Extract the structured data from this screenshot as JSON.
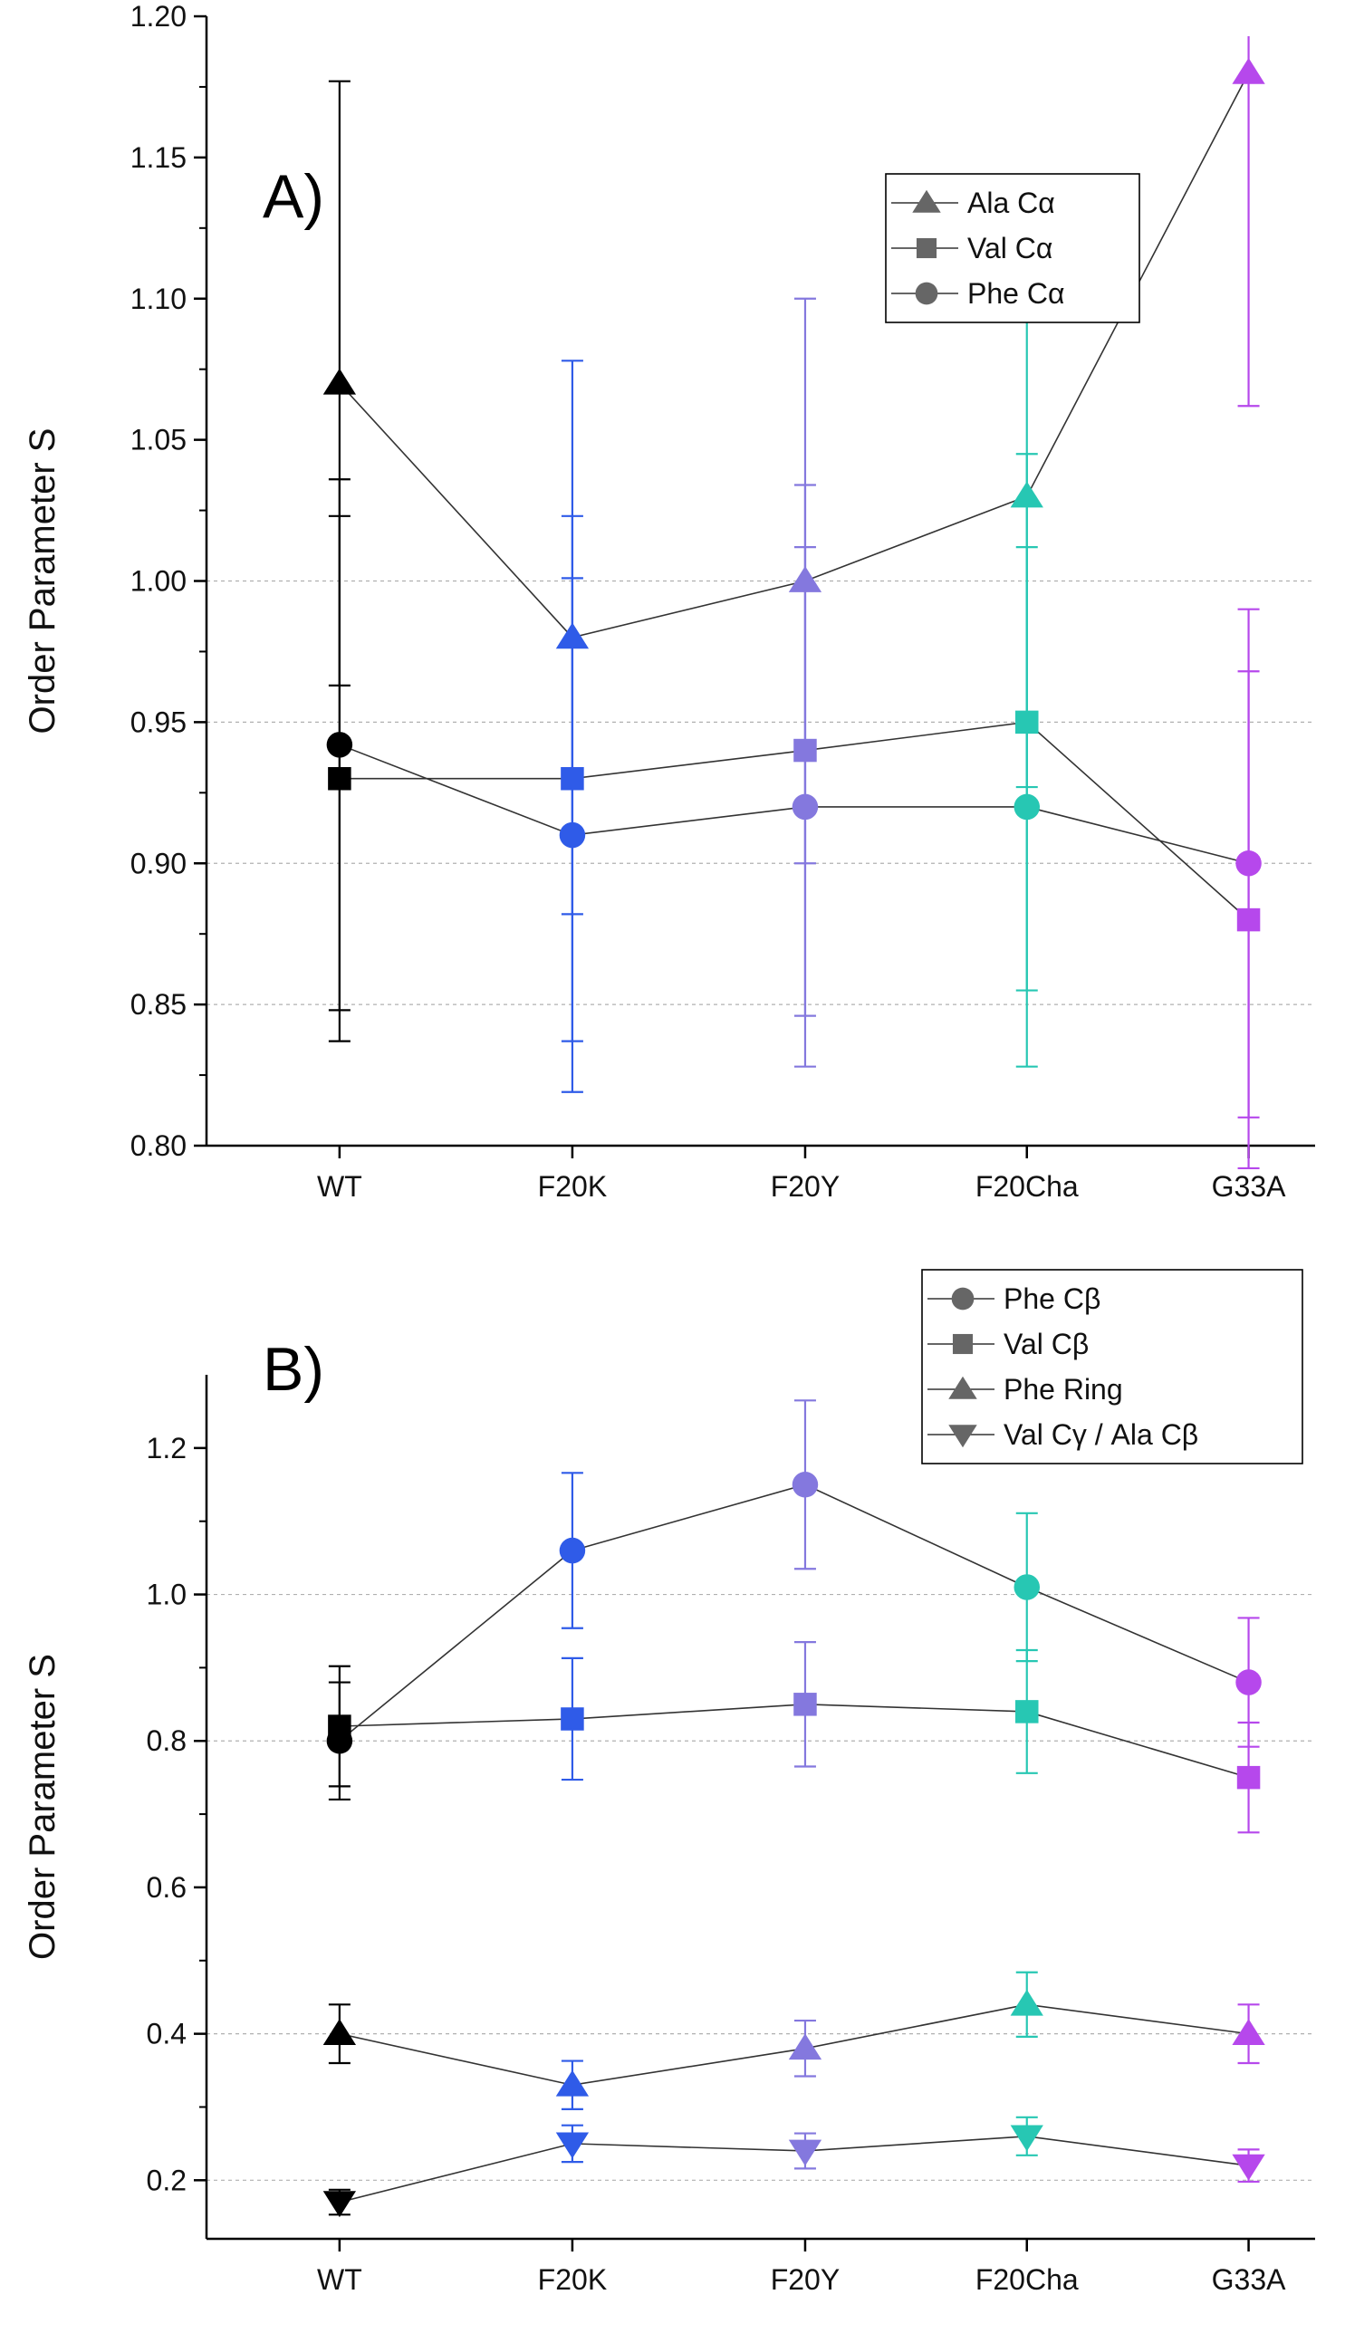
{
  "chart_data": [
    {
      "type": "line",
      "panel_label": "A)",
      "categories": [
        "WT",
        "F20K",
        "F20Y",
        "F20Cha",
        "G33A"
      ],
      "category_colors": [
        "#000000",
        "#2f5be8",
        "#8478de",
        "#27c7b3",
        "#b648ec"
      ],
      "ylabel": "Order Parameter S",
      "xlabel": "",
      "ylim": [
        0.8,
        1.2
      ],
      "yticks": [
        0.8,
        0.85,
        0.9,
        0.95,
        1.0,
        1.05,
        1.1,
        1.15,
        1.2
      ],
      "ytick_labels": [
        "0.80",
        "0.85",
        "0.90",
        "0.95",
        "1.00",
        "1.05",
        "1.10",
        "1.15",
        "1.20"
      ],
      "grid_lines": [
        0.85,
        0.9,
        0.95,
        1.0
      ],
      "legend_position": "top-right",
      "series": [
        {
          "name": "Ala Cα",
          "marker": "triangle-up",
          "values": [
            1.07,
            0.98,
            1.0,
            1.03,
            1.18
          ],
          "errors": [
            0.107,
            0.098,
            0.1,
            0.103,
            0.118
          ]
        },
        {
          "name": "Val  Cα",
          "marker": "square",
          "values": [
            0.93,
            0.93,
            0.94,
            0.95,
            0.88
          ],
          "errors": [
            0.093,
            0.093,
            0.094,
            0.095,
            0.088
          ]
        },
        {
          "name": "Phe Cα",
          "marker": "circle",
          "values": [
            0.942,
            0.91,
            0.92,
            0.92,
            0.9
          ],
          "errors": [
            0.094,
            0.091,
            0.092,
            0.092,
            0.09
          ]
        }
      ]
    },
    {
      "type": "line",
      "panel_label": "B)",
      "categories": [
        "WT",
        "F20K",
        "F20Y",
        "F20Cha",
        "G33A"
      ],
      "category_colors": [
        "#000000",
        "#2f5be8",
        "#8478de",
        "#27c7b3",
        "#b648ec"
      ],
      "ylabel": "Order Parameter S",
      "xlabel": "",
      "ylim": [
        0.12,
        1.3
      ],
      "yticks": [
        0.2,
        0.4,
        0.6,
        0.8,
        1.0,
        1.2
      ],
      "ytick_labels": [
        "0.2",
        "0.4",
        "0.6",
        "0.8",
        "1.0",
        "1.2"
      ],
      "grid_lines": [
        0.2,
        0.4,
        0.8,
        1.0
      ],
      "legend_position": "top-right",
      "series": [
        {
          "name": "Phe Cβ",
          "marker": "circle",
          "values": [
            0.8,
            1.06,
            1.15,
            1.01,
            0.88
          ],
          "errors": [
            0.08,
            0.106,
            0.115,
            0.101,
            0.088
          ]
        },
        {
          "name": "Val  Cβ",
          "marker": "square",
          "values": [
            0.82,
            0.83,
            0.85,
            0.84,
            0.75
          ],
          "errors": [
            0.082,
            0.083,
            0.085,
            0.084,
            0.075
          ]
        },
        {
          "name": "Phe Ring",
          "marker": "triangle-up",
          "values": [
            0.4,
            0.33,
            0.38,
            0.44,
            0.4
          ],
          "errors": [
            0.04,
            0.033,
            0.038,
            0.044,
            0.04
          ]
        },
        {
          "name": "Val Cγ / Ala Cβ",
          "marker": "triangle-down",
          "values": [
            0.17,
            0.25,
            0.24,
            0.26,
            0.22
          ],
          "errors": [
            0.017,
            0.025,
            0.024,
            0.026,
            0.022
          ]
        }
      ]
    }
  ]
}
